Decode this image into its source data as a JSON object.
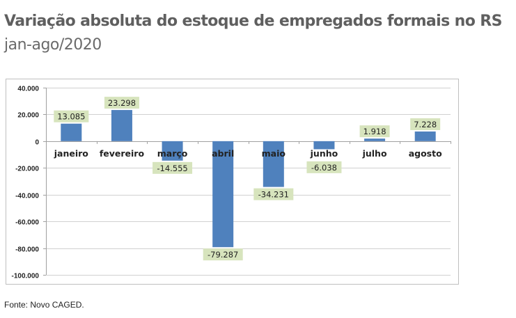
{
  "chart_data": {
    "type": "bar",
    "title": "Variação absoluta do estoque de empregados formais no RS",
    "subtitle": "jan-ago/2020",
    "categories": [
      "janeiro",
      "fevereiro",
      "março",
      "abril",
      "maio",
      "junho",
      "julho",
      "agosto"
    ],
    "values": [
      13085,
      23298,
      -14555,
      -79287,
      -34231,
      -6038,
      1918,
      7228
    ],
    "data_labels": [
      "13.085",
      "23.298",
      "-14.555",
      "-79.287",
      "-34.231",
      "-6.038",
      "1.918",
      "7.228"
    ],
    "ylim": [
      -100000,
      40000
    ],
    "yticks": [
      40000,
      20000,
      0,
      -20000,
      -40000,
      -60000,
      -80000,
      -100000
    ],
    "ytick_labels": [
      "40.000",
      "20.000",
      "0",
      "-20.000",
      "-40.000",
      "-60.000",
      "-80.000",
      "-100.000"
    ],
    "xlabel": "",
    "ylabel": "",
    "grid": true,
    "legend": "none",
    "colors": {
      "bar": "#4f81bd",
      "label_bg": "#d7e4bd",
      "grid": "#d0d0d0"
    }
  },
  "source": "Fonte: Novo CAGED."
}
